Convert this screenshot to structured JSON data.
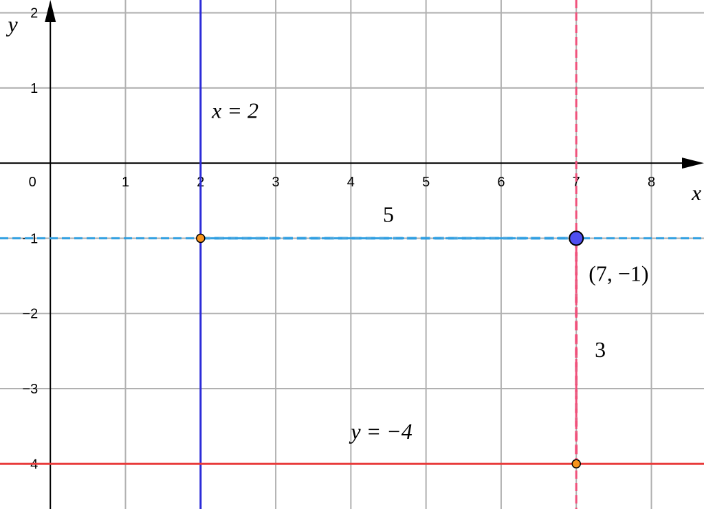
{
  "chart_data": {
    "type": "line",
    "xlabel": "x",
    "ylabel": "y",
    "xlim": [
      -0.67,
      8.7
    ],
    "ylim": [
      -4.6,
      2.17
    ],
    "grid": true,
    "x_ticks": [
      "1",
      "2",
      "3",
      "4",
      "5",
      "6",
      "7",
      "8"
    ],
    "y_ticks": [
      "2",
      "1",
      "−1",
      "−2",
      "−3",
      "−4"
    ],
    "origin_label": "0",
    "colors": {
      "grid": "#b0b0b0",
      "line_x2": "#2b2bd8",
      "line_y_neg4": "#e83a3a",
      "dashed_horizontal": "#2e9ee0",
      "dashed_vertical": "#f0507a",
      "point_main": "#4f4ff0",
      "point_intersection": "#f7941d",
      "label_5": "#2020e0",
      "label_3": "#ff0000"
    },
    "lines": [
      {
        "kind": "vertical",
        "x": 2,
        "style": "solid",
        "label": "x = 2"
      },
      {
        "kind": "horizontal",
        "y": -4,
        "style": "solid",
        "label": "y = −4"
      },
      {
        "kind": "horizontal",
        "y": -1,
        "style": "dashed"
      },
      {
        "kind": "vertical",
        "x": 7,
        "style": "dashed"
      }
    ],
    "segments": [
      {
        "from": [
          2,
          -1
        ],
        "to": [
          7,
          -1
        ],
        "label": "5"
      },
      {
        "from": [
          7,
          -1
        ],
        "to": [
          7,
          -4
        ],
        "label": "3"
      }
    ],
    "points": [
      {
        "x": 7,
        "y": -1,
        "label": "(7, −1)",
        "kind": "main"
      },
      {
        "x": 2,
        "y": -1,
        "kind": "intersection"
      },
      {
        "x": 7,
        "y": -4,
        "kind": "intersection"
      }
    ]
  }
}
